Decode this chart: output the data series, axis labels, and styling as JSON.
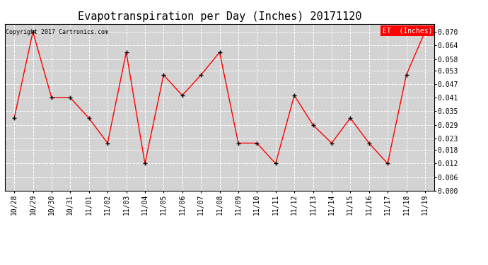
{
  "title": "Evapotranspiration per Day (Inches) 20171120",
  "copyright": "Copyright 2017 Cartronics.com",
  "legend_label": "ET  (Inches)",
  "x_labels": [
    "10/28",
    "10/29",
    "10/30",
    "10/31",
    "11/01",
    "11/02",
    "11/03",
    "11/04",
    "11/05",
    "11/06",
    "11/07",
    "11/08",
    "11/09",
    "11/10",
    "11/11",
    "11/12",
    "11/13",
    "11/14",
    "11/15",
    "11/16",
    "11/17",
    "11/18",
    "11/19"
  ],
  "y_values": [
    0.032,
    0.07,
    0.041,
    0.041,
    0.032,
    0.021,
    0.061,
    0.012,
    0.051,
    0.042,
    0.051,
    0.061,
    0.021,
    0.021,
    0.012,
    0.042,
    0.029,
    0.021,
    0.032,
    0.021,
    0.012,
    0.051,
    0.07
  ],
  "y_ticks": [
    0.0,
    0.006,
    0.012,
    0.018,
    0.023,
    0.029,
    0.035,
    0.041,
    0.047,
    0.053,
    0.058,
    0.064,
    0.07
  ],
  "ylim": [
    0.0,
    0.0735
  ],
  "line_color": "red",
  "marker": "+",
  "marker_color": "black",
  "bg_color": "#ffffff",
  "plot_bg_color": "#d3d3d3",
  "grid_color": "#ffffff",
  "title_fontsize": 11,
  "tick_fontsize": 7,
  "copyright_fontsize": 6,
  "legend_bg": "red",
  "legend_text_color": "white",
  "legend_fontsize": 7
}
